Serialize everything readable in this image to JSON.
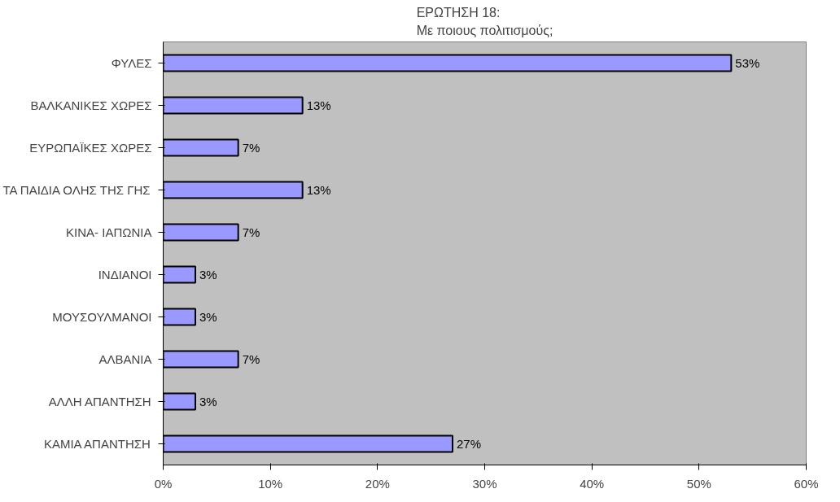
{
  "chart_data": {
    "type": "bar",
    "orientation": "horizontal",
    "title": "ΕΡΩΤΗΣΗ 18:\nΜε ποιους πολιτισμούς;",
    "categories": [
      "ΦΥΛΕΣ",
      "ΒΑΛΚΑΝΙΚΕΣ ΧΩΡΕΣ",
      "ΕΥΡΩΠΑΪΚΕΣ ΧΩΡΕΣ",
      "ΤΑ ΠΑΙΔΙΑ ΟΛΗΣ ΤΗΣ ΓΗΣ",
      "ΚΙΝΑ- ΙΑΠΩΝΙΑ",
      "ΙΝΔΙΑΝΟΙ",
      "ΜΟΥΣΟΥΛΜΑΝΟΙ",
      "ΑΛΒΑΝΙΑ",
      "ΑΛΛΗ ΑΠΑΝΤΗΣΗ",
      "ΚΑΜΙΑ ΑΠΑΝΤΗΣΗ"
    ],
    "values": [
      53,
      13,
      7,
      13,
      7,
      3,
      3,
      7,
      3,
      27
    ],
    "value_labels": [
      "53%",
      "13%",
      "7%",
      "13%",
      "7%",
      "3%",
      "3%",
      "7%",
      "3%",
      "27%"
    ],
    "color": "#9999ff",
    "xlim": [
      0,
      60
    ],
    "xticks": [
      {
        "value": 0,
        "label": "0%"
      },
      {
        "value": 10,
        "label": "10%"
      },
      {
        "value": 20,
        "label": "20%"
      },
      {
        "value": 30,
        "label": "30%"
      },
      {
        "value": 40,
        "label": "40%"
      },
      {
        "value": 50,
        "label": "50%"
      },
      {
        "value": 60,
        "label": "60%"
      }
    ],
    "grid": false
  }
}
